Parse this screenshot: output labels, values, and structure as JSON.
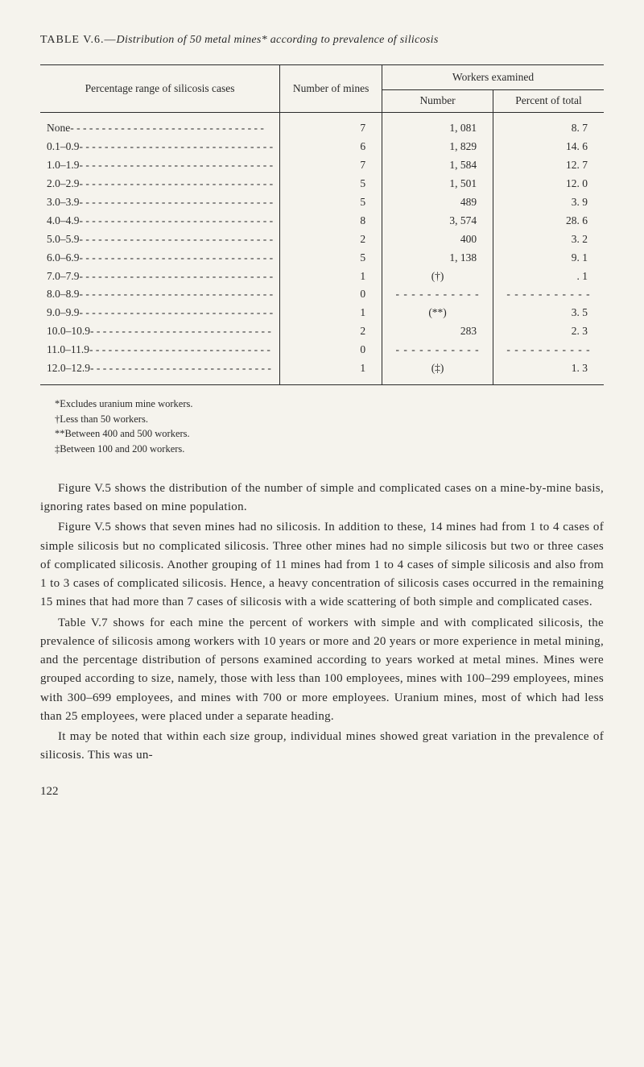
{
  "tableTitle": {
    "label": "TABLE V.6.—",
    "rest": "Distribution of 50 metal mines* according to prevalence of silicosis"
  },
  "headers": {
    "col1": "Percentage range of silicosis cases",
    "col2": "Number of mines",
    "col3group": "Workers examined",
    "col3a": "Number",
    "col3b": "Percent of total"
  },
  "rows": [
    {
      "label": "None",
      "mines": "7",
      "number": "1, 081",
      "percent": "8. 7"
    },
    {
      "label": "0.1–0.9",
      "mines": "6",
      "number": "1, 829",
      "percent": "14. 6"
    },
    {
      "label": "1.0–1.9",
      "mines": "7",
      "number": "1, 584",
      "percent": "12. 7"
    },
    {
      "label": "2.0–2.9",
      "mines": "5",
      "number": "1, 501",
      "percent": "12. 0"
    },
    {
      "label": "3.0–3.9",
      "mines": "5",
      "number": "489",
      "percent": "3. 9"
    },
    {
      "label": "4.0–4.9",
      "mines": "8",
      "number": "3, 574",
      "percent": "28. 6"
    },
    {
      "label": "5.0–5.9",
      "mines": "2",
      "number": "400",
      "percent": "3. 2"
    },
    {
      "label": "6.0–6.9",
      "mines": "5",
      "number": "1, 138",
      "percent": "9. 1"
    },
    {
      "label": "7.0–7.9",
      "mines": "1",
      "number": "(†)",
      "percent": ". 1"
    },
    {
      "label": "8.0–8.9",
      "mines": "0",
      "number": "dash",
      "percent": "dash"
    },
    {
      "label": "9.0–9.9",
      "mines": "1",
      "number": "(**)",
      "percent": "3. 5"
    },
    {
      "label": "10.0–10.9",
      "mines": "2",
      "number": "283",
      "percent": "2. 3"
    },
    {
      "label": "11.0–11.9",
      "mines": "0",
      "number": "dash",
      "percent": "dash"
    },
    {
      "label": "12.0–12.9",
      "mines": "1",
      "number": "(‡)",
      "percent": "1. 3"
    }
  ],
  "footnotes": {
    "f1": "*Excludes uranium mine workers.",
    "f2": "†Less than 50 workers.",
    "f3": "**Between 400 and 500 workers.",
    "f4": "‡Between 100 and 200 workers."
  },
  "paragraphs": {
    "p1": "Figure V.5 shows the distribution of the number of simple and complicated cases on a mine-by-mine basis, ignoring rates based on mine population.",
    "p2": "Figure V.5 shows that seven mines had no silicosis. In addition to these, 14 mines had from 1 to 4 cases of simple silicosis but no complicated silicosis. Three other mines had no simple silicosis but two or three cases of complicated silicosis. Another grouping of 11 mines had from 1 to 4 cases of simple silicosis and also from 1 to 3 cases of complicated silicosis. Hence, a heavy concentration of silicosis cases occurred in the remaining 15 mines that had more than 7 cases of silicosis with a wide scattering of both simple and complicated cases.",
    "p3": "Table V.7 shows for each mine the percent of workers with simple and with complicated silicosis, the prevalence of silicosis among workers with 10 years or more and 20 years or more experience in metal mining, and the percentage distribution of persons examined according to years worked at metal mines. Mines were grouped according to size, namely, those with less than 100 employees, mines with 100–299 employees, mines with 300–699 employees, and mines with 700 or more employees. Uranium mines, most of which had less than 25 employees, were placed under a separate heading.",
    "p4": "It may be noted that within each size group, individual mines showed great variation in the prevalence of silicosis. This was un-"
  },
  "pageNumber": "122",
  "dashFill": "- - - - - - - - - - -",
  "leaderLong": "- - - - - - - - - - - - - - - - - - - - - - - - - - - - - - -",
  "leaderMed": "- - - - - - - - - - - - - - - - - - - - - - - - - - - - -"
}
